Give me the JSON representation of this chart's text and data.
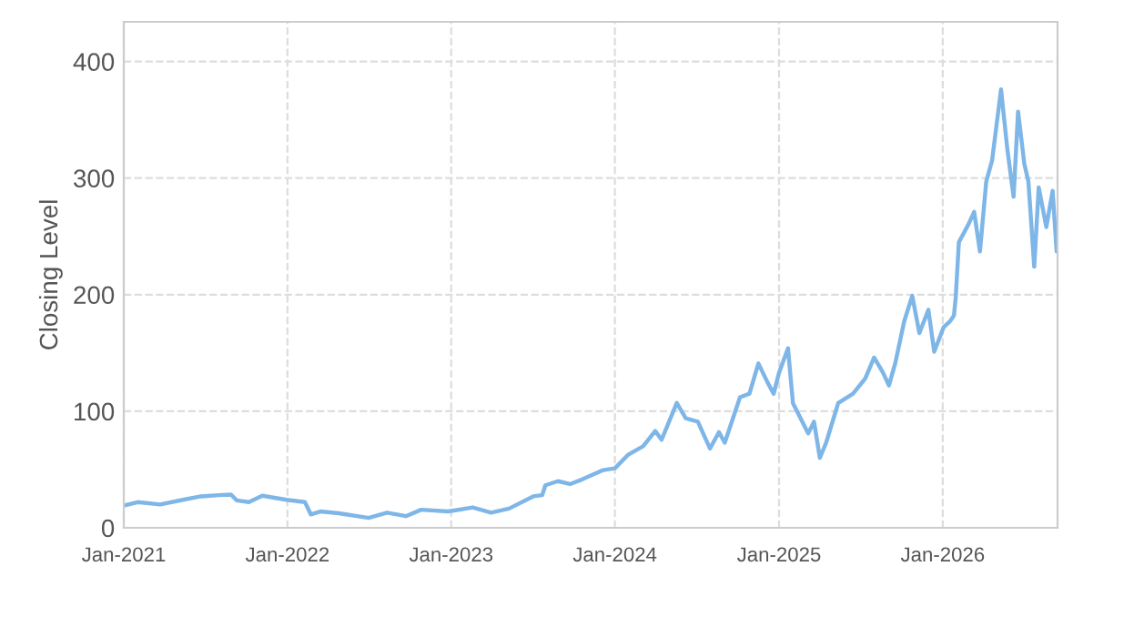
{
  "chart_data": {
    "type": "line",
    "ylabel": "Closing Level",
    "x": [
      "2021-01-01",
      "2021-02-01",
      "2021-03-23",
      "2021-05-13",
      "2021-06-22",
      "2021-08-01",
      "2021-08-28",
      "2021-09-10",
      "2021-10-07",
      "2021-11-06",
      "2021-12-30",
      "2022-02-09",
      "2022-02-22",
      "2022-03-15",
      "2022-04-25",
      "2022-07-01",
      "2022-08-11",
      "2022-09-22",
      "2022-10-26",
      "2022-12-25",
      "2023-02-18",
      "2023-03-31",
      "2023-05-10",
      "2023-07-03",
      "2023-07-23",
      "2023-07-30",
      "2023-08-27",
      "2023-09-23",
      "2023-10-20",
      "2023-12-06",
      "2024-01-01",
      "2024-01-30",
      "2024-03-04",
      "2024-03-31",
      "2024-04-14",
      "2024-05-18",
      "2024-06-07",
      "2024-07-04",
      "2024-07-31",
      "2024-08-20",
      "2024-09-02",
      "2024-10-06",
      "2024-10-27",
      "2024-11-16",
      "2024-12-06",
      "2024-12-20",
      "2025-01-01",
      "2025-01-21",
      "2025-02-01",
      "2025-03-07",
      "2025-03-20",
      "2025-04-02",
      "2025-04-16",
      "2025-05-13",
      "2025-06-15",
      "2025-07-12",
      "2025-08-01",
      "2025-08-21",
      "2025-09-03",
      "2025-09-17",
      "2025-10-07",
      "2025-10-25",
      "2025-11-10",
      "2025-11-30",
      "2025-12-13",
      "2026-01-03",
      "2026-01-17",
      "2026-01-26",
      "2026-01-30",
      "2026-02-06",
      "2026-02-27",
      "2026-03-12",
      "2026-03-25",
      "2026-04-08",
      "2026-04-21",
      "2026-05-11",
      "2026-05-25",
      "2026-06-08",
      "2026-06-18",
      "2026-07-02",
      "2026-07-11",
      "2026-07-24",
      "2026-08-03",
      "2026-08-20",
      "2026-09-03",
      "2026-09-12"
    ],
    "series": [
      {
        "color": "#7eb6e8",
        "values": [
          19,
          22,
          20,
          24,
          27,
          28,
          28.5,
          23.5,
          22,
          27.5,
          24,
          22,
          11.5,
          14,
          12.5,
          8.5,
          13,
          10,
          15.5,
          14,
          17.5,
          13,
          16.5,
          27,
          28,
          36.5,
          40,
          37.5,
          41.5,
          49.5,
          51,
          62.5,
          70,
          83,
          75.5,
          107,
          94,
          91,
          68,
          82,
          73,
          112,
          115,
          141,
          125,
          115,
          133,
          154,
          107,
          81,
          91,
          60,
          73,
          107,
          115,
          128,
          146,
          133,
          122,
          141,
          177,
          199,
          167,
          187,
          151,
          172,
          177,
          182,
          198,
          245,
          260,
          271,
          237,
          297,
          315,
          376,
          325,
          284,
          357,
          312,
          297,
          224,
          292,
          258,
          289,
          237
        ]
      }
    ],
    "xlim": [
      "2021-01-01",
      "2026-09-14"
    ],
    "ylim": [
      0,
      434
    ],
    "xticks": [
      {
        "value": "2021-01-01",
        "label": "Jan-2021"
      },
      {
        "value": "2022-01-01",
        "label": "Jan-2022"
      },
      {
        "value": "2023-01-01",
        "label": "Jan-2023"
      },
      {
        "value": "2024-01-01",
        "label": "Jan-2024"
      },
      {
        "value": "2025-01-01",
        "label": "Jan-2025"
      },
      {
        "value": "2026-01-01",
        "label": "Jan-2026"
      }
    ],
    "yticks": [
      0,
      100,
      200,
      300,
      400
    ],
    "grid": true,
    "line_style": "solid",
    "marker": "none"
  }
}
